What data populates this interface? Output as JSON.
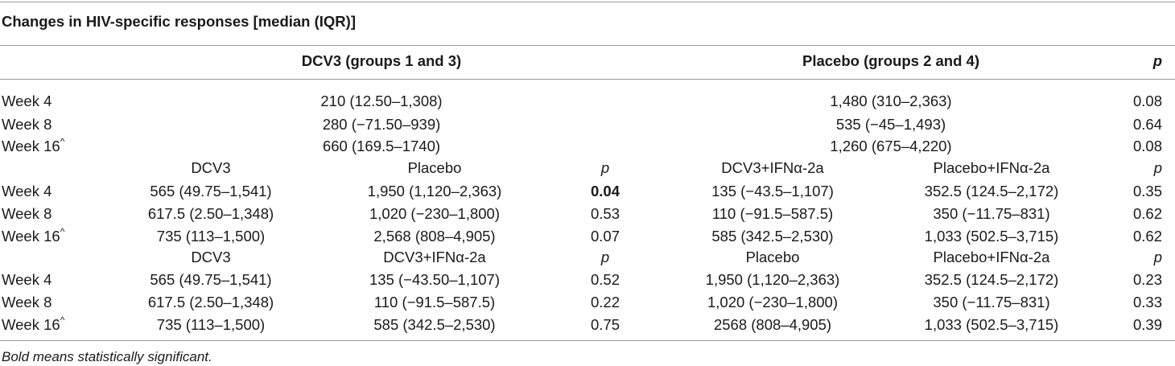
{
  "title": "Changes in HIV-specific responses [median (IQR)]",
  "header": {
    "dcv3": "DCV3 (groups 1 and 3)",
    "placebo": "Placebo (groups 2 and 4)",
    "p": "p"
  },
  "section1": [
    {
      "label": "Week 4",
      "dcv3": "210 (12.50–1,308)",
      "placebo": "1,480 (310–2,363)",
      "p": "0.08"
    },
    {
      "label": "Week 8",
      "dcv3": "280 (−71.50–939)",
      "placebo": "535 (−45–1,493)",
      "p": "0.64"
    },
    {
      "label": "Week 16",
      "dcv3": "660 (169.5–1740)",
      "placebo": "1,260 (675–4,220)",
      "p": "0.08"
    }
  ],
  "section2": {
    "headers": [
      "DCV3",
      "Placebo",
      "p",
      "DCV3+IFNα-2a",
      "Placebo+IFNα-2a",
      "p"
    ],
    "rows": [
      {
        "label": "Week 4",
        "cells": [
          "565 (49.75–1,541)",
          "1,950 (1,120–2,363)",
          "0.04",
          "135 (−43.5–1,107)",
          "352.5 (124.5–2,172)",
          "0.35"
        ]
      },
      {
        "label": "Week 8",
        "cells": [
          "617.5 (2.50–1,348)",
          "1,020 (−230–1,800)",
          "0.53",
          "110 (−91.5–587.5)",
          "350 (−11.75–831)",
          "0.62"
        ]
      },
      {
        "label": "Week 16",
        "cells": [
          "735 (113–1,500)",
          "2,568 (808–4,905)",
          "0.07",
          "585 (342.5–2,530)",
          "1,033 (502.5–3,715)",
          "0.62"
        ]
      }
    ]
  },
  "section3": {
    "headers": [
      "DCV3",
      "DCV3+IFNα-2a",
      "p",
      "Placebo",
      "Placebo+IFNα-2a",
      "p"
    ],
    "rows": [
      {
        "label": "Week 4",
        "cells": [
          "565 (49.75–1,541)",
          "135 (−43.50–1,107)",
          "0.52",
          "1,950 (1,120–2,363)",
          "352.5 (124.5–2,172)",
          "0.23"
        ]
      },
      {
        "label": "Week 8",
        "cells": [
          "617.5 (2.50–1,348)",
          "110 (−91.5–587.5)",
          "0.22",
          "1,020 (−230–1,800)",
          "350 (−11.75–831)",
          "0.33"
        ]
      },
      {
        "label": "Week 16",
        "cells": [
          "735 (113–1,500)",
          "585 (342.5–2,530)",
          "0.75",
          "2568 (808–4,905)",
          "1,033 (502.5–3,715)",
          "0.39"
        ]
      }
    ]
  },
  "caret": "^",
  "footnote": "Bold means statistically significant."
}
